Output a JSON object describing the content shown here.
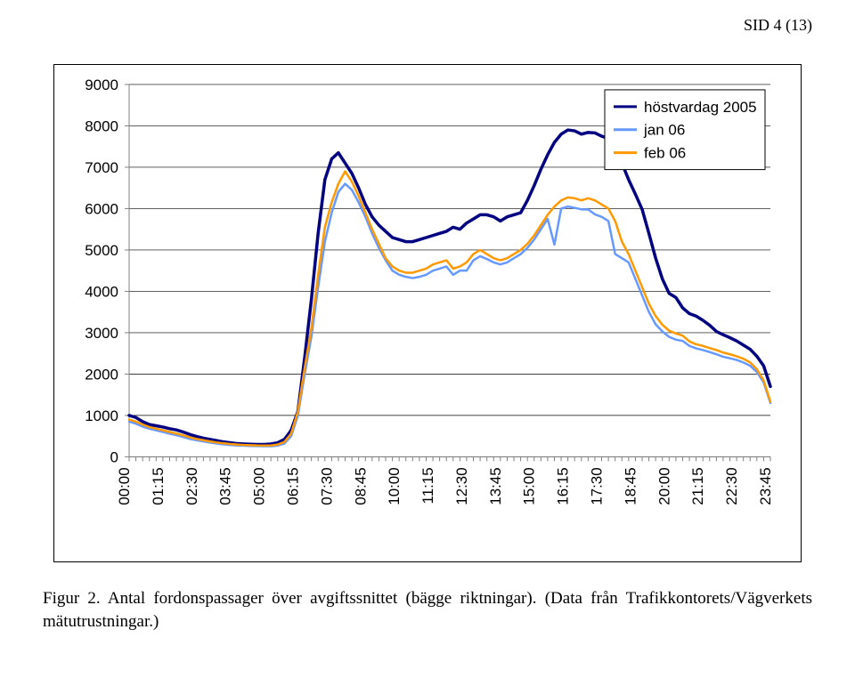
{
  "page_header": "SID 4 (13)",
  "caption": "Figur 2. Antal fordonspassager över avgiftssnittet (bägge riktningar). (Data från Trafikkontorets/Vägverkets mätutrustningar.)",
  "chart": {
    "type": "line",
    "background_color": "#ffffff",
    "plot_background_color": "#ffffff",
    "gridline_color": "#000000",
    "tick_color": "#808080",
    "axis_line_color": "#808080",
    "label_color": "#000000",
    "tick_fontsize": 17,
    "legend_fontsize": 17,
    "ylim": [
      0,
      9000
    ],
    "ytick_step": 1000,
    "yticks": [
      0,
      1000,
      2000,
      3000,
      4000,
      5000,
      6000,
      7000,
      8000,
      9000
    ],
    "x_categories": [
      "00:00",
      "01:15",
      "02:30",
      "03:45",
      "05:00",
      "06:15",
      "07:30",
      "08:45",
      "10:00",
      "11:15",
      "12:30",
      "13:45",
      "15:00",
      "16:15",
      "17:30",
      "18:45",
      "20:00",
      "21:15",
      "22:30",
      "23:45"
    ],
    "x_count": 96,
    "legend": {
      "position": "top-right",
      "box_border": "#000000",
      "box_fill": "#ffffff",
      "items": [
        {
          "label": "höstvardag 2005",
          "color": "#000080"
        },
        {
          "label": "jan 06",
          "color": "#6699ff"
        },
        {
          "label": "feb 06",
          "color": "#ff9900"
        }
      ]
    },
    "series": [
      {
        "name": "höstvardag 2005",
        "color": "#000080",
        "line_width": 3.5,
        "values": [
          1000,
          950,
          850,
          780,
          750,
          720,
          680,
          650,
          600,
          540,
          490,
          450,
          420,
          390,
          360,
          340,
          320,
          310,
          305,
          300,
          300,
          310,
          340,
          420,
          640,
          1100,
          2400,
          3800,
          5400,
          6700,
          7200,
          7350,
          7100,
          6850,
          6500,
          6100,
          5800,
          5600,
          5450,
          5300,
          5250,
          5200,
          5200,
          5250,
          5300,
          5350,
          5400,
          5450,
          5550,
          5500,
          5650,
          5750,
          5850,
          5850,
          5800,
          5700,
          5800,
          5850,
          5900,
          6200,
          6550,
          6950,
          7300,
          7600,
          7800,
          7900,
          7880,
          7800,
          7840,
          7830,
          7750,
          7700,
          7480,
          7100,
          6700,
          6350,
          5980,
          5400,
          4800,
          4300,
          3950,
          3850,
          3600,
          3460,
          3400,
          3300,
          3180,
          3030,
          2950,
          2880,
          2800,
          2700,
          2600,
          2430,
          2200,
          1700
        ]
      },
      {
        "name": "jan 06",
        "color": "#6699ff",
        "line_width": 2.5,
        "values": [
          850,
          800,
          730,
          680,
          640,
          600,
          560,
          520,
          480,
          430,
          400,
          370,
          345,
          320,
          300,
          285,
          275,
          268,
          262,
          258,
          256,
          256,
          270,
          320,
          500,
          1000,
          2000,
          2900,
          4100,
          5200,
          5900,
          6400,
          6600,
          6450,
          6150,
          5800,
          5400,
          5050,
          4750,
          4500,
          4400,
          4350,
          4320,
          4350,
          4400,
          4500,
          4550,
          4600,
          4400,
          4500,
          4500,
          4750,
          4850,
          4780,
          4700,
          4650,
          4700,
          4800,
          4900,
          5050,
          5250,
          5500,
          5750,
          5130,
          6000,
          6050,
          6020,
          5980,
          5980,
          5860,
          5800,
          5700,
          4900,
          4800,
          4700,
          4300,
          3900,
          3500,
          3200,
          3030,
          2900,
          2830,
          2800,
          2680,
          2620,
          2580,
          2530,
          2480,
          2420,
          2380,
          2340,
          2280,
          2200,
          2050,
          1800,
          1300
        ]
      },
      {
        "name": "feb 06",
        "color": "#ff9900",
        "line_width": 2.5,
        "values": [
          900,
          850,
          780,
          720,
          680,
          640,
          600,
          560,
          520,
          470,
          430,
          400,
          370,
          345,
          325,
          308,
          295,
          286,
          280,
          275,
          273,
          275,
          295,
          360,
          560,
          1100,
          2150,
          3100,
          4400,
          5550,
          6150,
          6600,
          6900,
          6650,
          6300,
          5900,
          5500,
          5150,
          4800,
          4600,
          4500,
          4450,
          4450,
          4500,
          4550,
          4650,
          4700,
          4750,
          4550,
          4600,
          4700,
          4900,
          5000,
          4900,
          4800,
          4750,
          4800,
          4900,
          5000,
          5150,
          5350,
          5600,
          5850,
          6050,
          6200,
          6270,
          6250,
          6200,
          6250,
          6200,
          6100,
          6000,
          5700,
          5200,
          4900,
          4500,
          4100,
          3700,
          3400,
          3190,
          3050,
          2980,
          2930,
          2790,
          2720,
          2680,
          2630,
          2580,
          2520,
          2480,
          2430,
          2370,
          2280,
          2120,
          1850,
          1330
        ]
      }
    ]
  }
}
